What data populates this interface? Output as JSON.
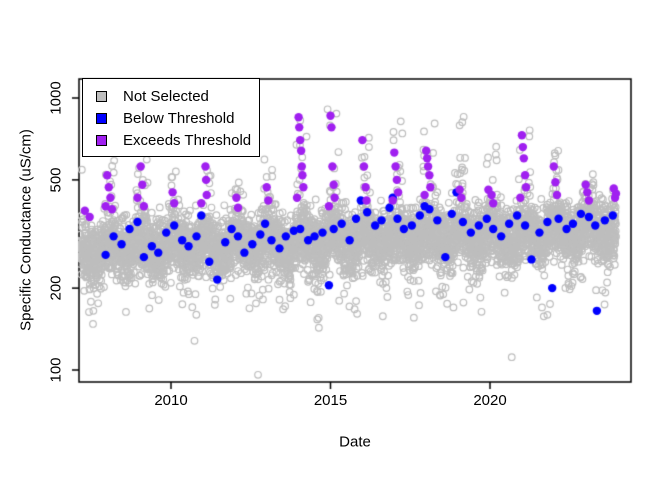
{
  "figure": {
    "background": "#ffffff",
    "border_color": "#000000"
  },
  "chart_data": {
    "type": "scatter",
    "title": "",
    "xlabel": "Date",
    "ylabel": "Specific Conductance (uS/cm)",
    "x_axis": {
      "ticks": [
        2010,
        2015,
        2020
      ],
      "range_years": [
        2007.1,
        2024.65
      ],
      "grid": false
    },
    "y_axis": {
      "scale": "log10",
      "ticks": [
        100,
        200,
        500,
        1000
      ],
      "range": [
        90,
        1175
      ],
      "grid": false
    },
    "legend": [
      {
        "label": "Not Selected",
        "color": "#BEBEBE",
        "marker": "square"
      },
      {
        "label": "Below Threshold",
        "color": "#0000FF",
        "marker": "square"
      },
      {
        "label": "Exceeds Threshold",
        "color": "#A020F0",
        "marker": "square"
      }
    ],
    "series": {
      "not_selected": {
        "name": "Not Selected",
        "marker": "open-circle",
        "color": "#BEBEBE",
        "model": {
          "seed": 42,
          "start": 2007.15,
          "end": 2023.95,
          "samples_per_year": 365,
          "base_value_2008": 278,
          "base_slope_per_year": 3.0,
          "noise_sd_log10": 0.055,
          "summer_window": [
            0.42,
            0.78
          ],
          "summer_factor": 0.95,
          "winter_window_start": 0.9,
          "winter_window_end": 0.27,
          "spike_prob": 0.17,
          "spike_shape": 1.7,
          "low_prob": 0.05,
          "low_drop_log10": 0.24,
          "deep_low_prob": 0.0012,
          "value_min": 96,
          "value_max": 1080,
          "winter_peaks": {
            "2008": 620,
            "2009": 660,
            "2010": 540,
            "2011": 780,
            "2012": 530,
            "2013": 570,
            "2014": 860,
            "2015": 1060,
            "2016": 730,
            "2017": 850,
            "2018": 840,
            "2019": 880,
            "2020": 650,
            "2021": 810,
            "2022": 630,
            "2023": 550,
            "2024": 480
          }
        }
      },
      "below_threshold": {
        "name": "Below Threshold",
        "marker": "filled-circle",
        "color": "#0000FF",
        "points": [
          [
            2007.95,
            265
          ],
          [
            2008.2,
            310
          ],
          [
            2008.45,
            290
          ],
          [
            2008.7,
            330
          ],
          [
            2008.95,
            350
          ],
          [
            2009.15,
            260
          ],
          [
            2009.4,
            285
          ],
          [
            2009.6,
            270
          ],
          [
            2009.85,
            320
          ],
          [
            2010.1,
            340
          ],
          [
            2010.35,
            300
          ],
          [
            2010.55,
            285
          ],
          [
            2010.8,
            310
          ],
          [
            2010.95,
            370
          ],
          [
            2011.2,
            250
          ],
          [
            2011.45,
            215
          ],
          [
            2011.7,
            295
          ],
          [
            2011.9,
            330
          ],
          [
            2012.1,
            310
          ],
          [
            2012.3,
            270
          ],
          [
            2012.55,
            290
          ],
          [
            2012.8,
            315
          ],
          [
            2012.95,
            345
          ],
          [
            2013.15,
            300
          ],
          [
            2013.4,
            280
          ],
          [
            2013.6,
            310
          ],
          [
            2013.85,
            325
          ],
          [
            2014.05,
            330
          ],
          [
            2014.3,
            300
          ],
          [
            2014.5,
            310
          ],
          [
            2014.75,
            320
          ],
          [
            2014.95,
            205
          ],
          [
            2015.1,
            330
          ],
          [
            2015.35,
            345
          ],
          [
            2015.6,
            300
          ],
          [
            2015.8,
            360
          ],
          [
            2015.95,
            420
          ],
          [
            2016.15,
            380
          ],
          [
            2016.4,
            340
          ],
          [
            2016.6,
            355
          ],
          [
            2016.85,
            395
          ],
          [
            2016.95,
            430
          ],
          [
            2017.1,
            360
          ],
          [
            2017.3,
            330
          ],
          [
            2017.55,
            340
          ],
          [
            2017.8,
            370
          ],
          [
            2017.95,
            400
          ],
          [
            2018.1,
            390
          ],
          [
            2018.35,
            355
          ],
          [
            2018.6,
            260
          ],
          [
            2018.8,
            375
          ],
          [
            2018.95,
            450
          ],
          [
            2019.15,
            350
          ],
          [
            2019.4,
            320
          ],
          [
            2019.65,
            340
          ],
          [
            2019.9,
            360
          ],
          [
            2020.1,
            330
          ],
          [
            2020.35,
            310
          ],
          [
            2020.6,
            345
          ],
          [
            2020.85,
            370
          ],
          [
            2021.1,
            340
          ],
          [
            2021.3,
            255
          ],
          [
            2021.55,
            320
          ],
          [
            2021.8,
            350
          ],
          [
            2021.95,
            200
          ],
          [
            2022.15,
            360
          ],
          [
            2022.4,
            330
          ],
          [
            2022.6,
            345
          ],
          [
            2022.85,
            375
          ],
          [
            2023.1,
            365
          ],
          [
            2023.3,
            340
          ],
          [
            2023.35,
            165
          ],
          [
            2023.6,
            355
          ],
          [
            2023.85,
            370
          ]
        ]
      },
      "exceeds_threshold": {
        "name": "Exceeds Threshold",
        "marker": "filled-circle",
        "color": "#A020F0",
        "points": [
          [
            2007.3,
            385
          ],
          [
            2007.45,
            365
          ],
          [
            2007.95,
            400
          ],
          [
            2008.0,
            520
          ],
          [
            2008.05,
            470
          ],
          [
            2008.1,
            430
          ],
          [
            2008.15,
            390
          ],
          [
            2008.95,
            430
          ],
          [
            2009.0,
            640
          ],
          [
            2009.05,
            560
          ],
          [
            2009.1,
            480
          ],
          [
            2009.15,
            400
          ],
          [
            2010.05,
            450
          ],
          [
            2010.1,
            410
          ],
          [
            2010.95,
            410
          ],
          [
            2011.0,
            760
          ],
          [
            2011.02,
            700
          ],
          [
            2011.05,
            640
          ],
          [
            2011.08,
            560
          ],
          [
            2011.1,
            500
          ],
          [
            2011.12,
            440
          ],
          [
            2012.05,
            430
          ],
          [
            2012.1,
            395
          ],
          [
            2013.0,
            470
          ],
          [
            2013.05,
            420
          ],
          [
            2013.95,
            430
          ],
          [
            2014.0,
            850
          ],
          [
            2014.02,
            780
          ],
          [
            2014.05,
            700
          ],
          [
            2014.08,
            640
          ],
          [
            2014.1,
            560
          ],
          [
            2014.12,
            520
          ],
          [
            2014.15,
            470
          ],
          [
            2014.95,
            400
          ],
          [
            2015.0,
            860
          ],
          [
            2015.03,
            780
          ],
          [
            2015.06,
            560
          ],
          [
            2015.1,
            480
          ],
          [
            2015.13,
            430
          ],
          [
            2016.0,
            700
          ],
          [
            2016.05,
            560
          ],
          [
            2016.1,
            470
          ],
          [
            2016.13,
            420
          ],
          [
            2016.95,
            420
          ],
          [
            2017.0,
            630
          ],
          [
            2017.04,
            560
          ],
          [
            2017.08,
            500
          ],
          [
            2017.12,
            450
          ],
          [
            2017.95,
            440
          ],
          [
            2018.0,
            640
          ],
          [
            2018.03,
            600
          ],
          [
            2018.06,
            560
          ],
          [
            2018.1,
            520
          ],
          [
            2018.13,
            470
          ],
          [
            2019.05,
            460
          ],
          [
            2019.1,
            430
          ],
          [
            2019.95,
            460
          ],
          [
            2020.05,
            440
          ],
          [
            2020.1,
            410
          ],
          [
            2020.95,
            430
          ],
          [
            2021.0,
            730
          ],
          [
            2021.03,
            660
          ],
          [
            2021.06,
            600
          ],
          [
            2021.1,
            520
          ],
          [
            2021.13,
            470
          ],
          [
            2022.0,
            560
          ],
          [
            2022.05,
            490
          ],
          [
            2022.1,
            440
          ],
          [
            2023.0,
            480
          ],
          [
            2023.05,
            450
          ],
          [
            2023.1,
            420
          ],
          [
            2023.88,
            465
          ],
          [
            2023.92,
            430
          ],
          [
            2023.95,
            445
          ]
        ]
      }
    }
  }
}
